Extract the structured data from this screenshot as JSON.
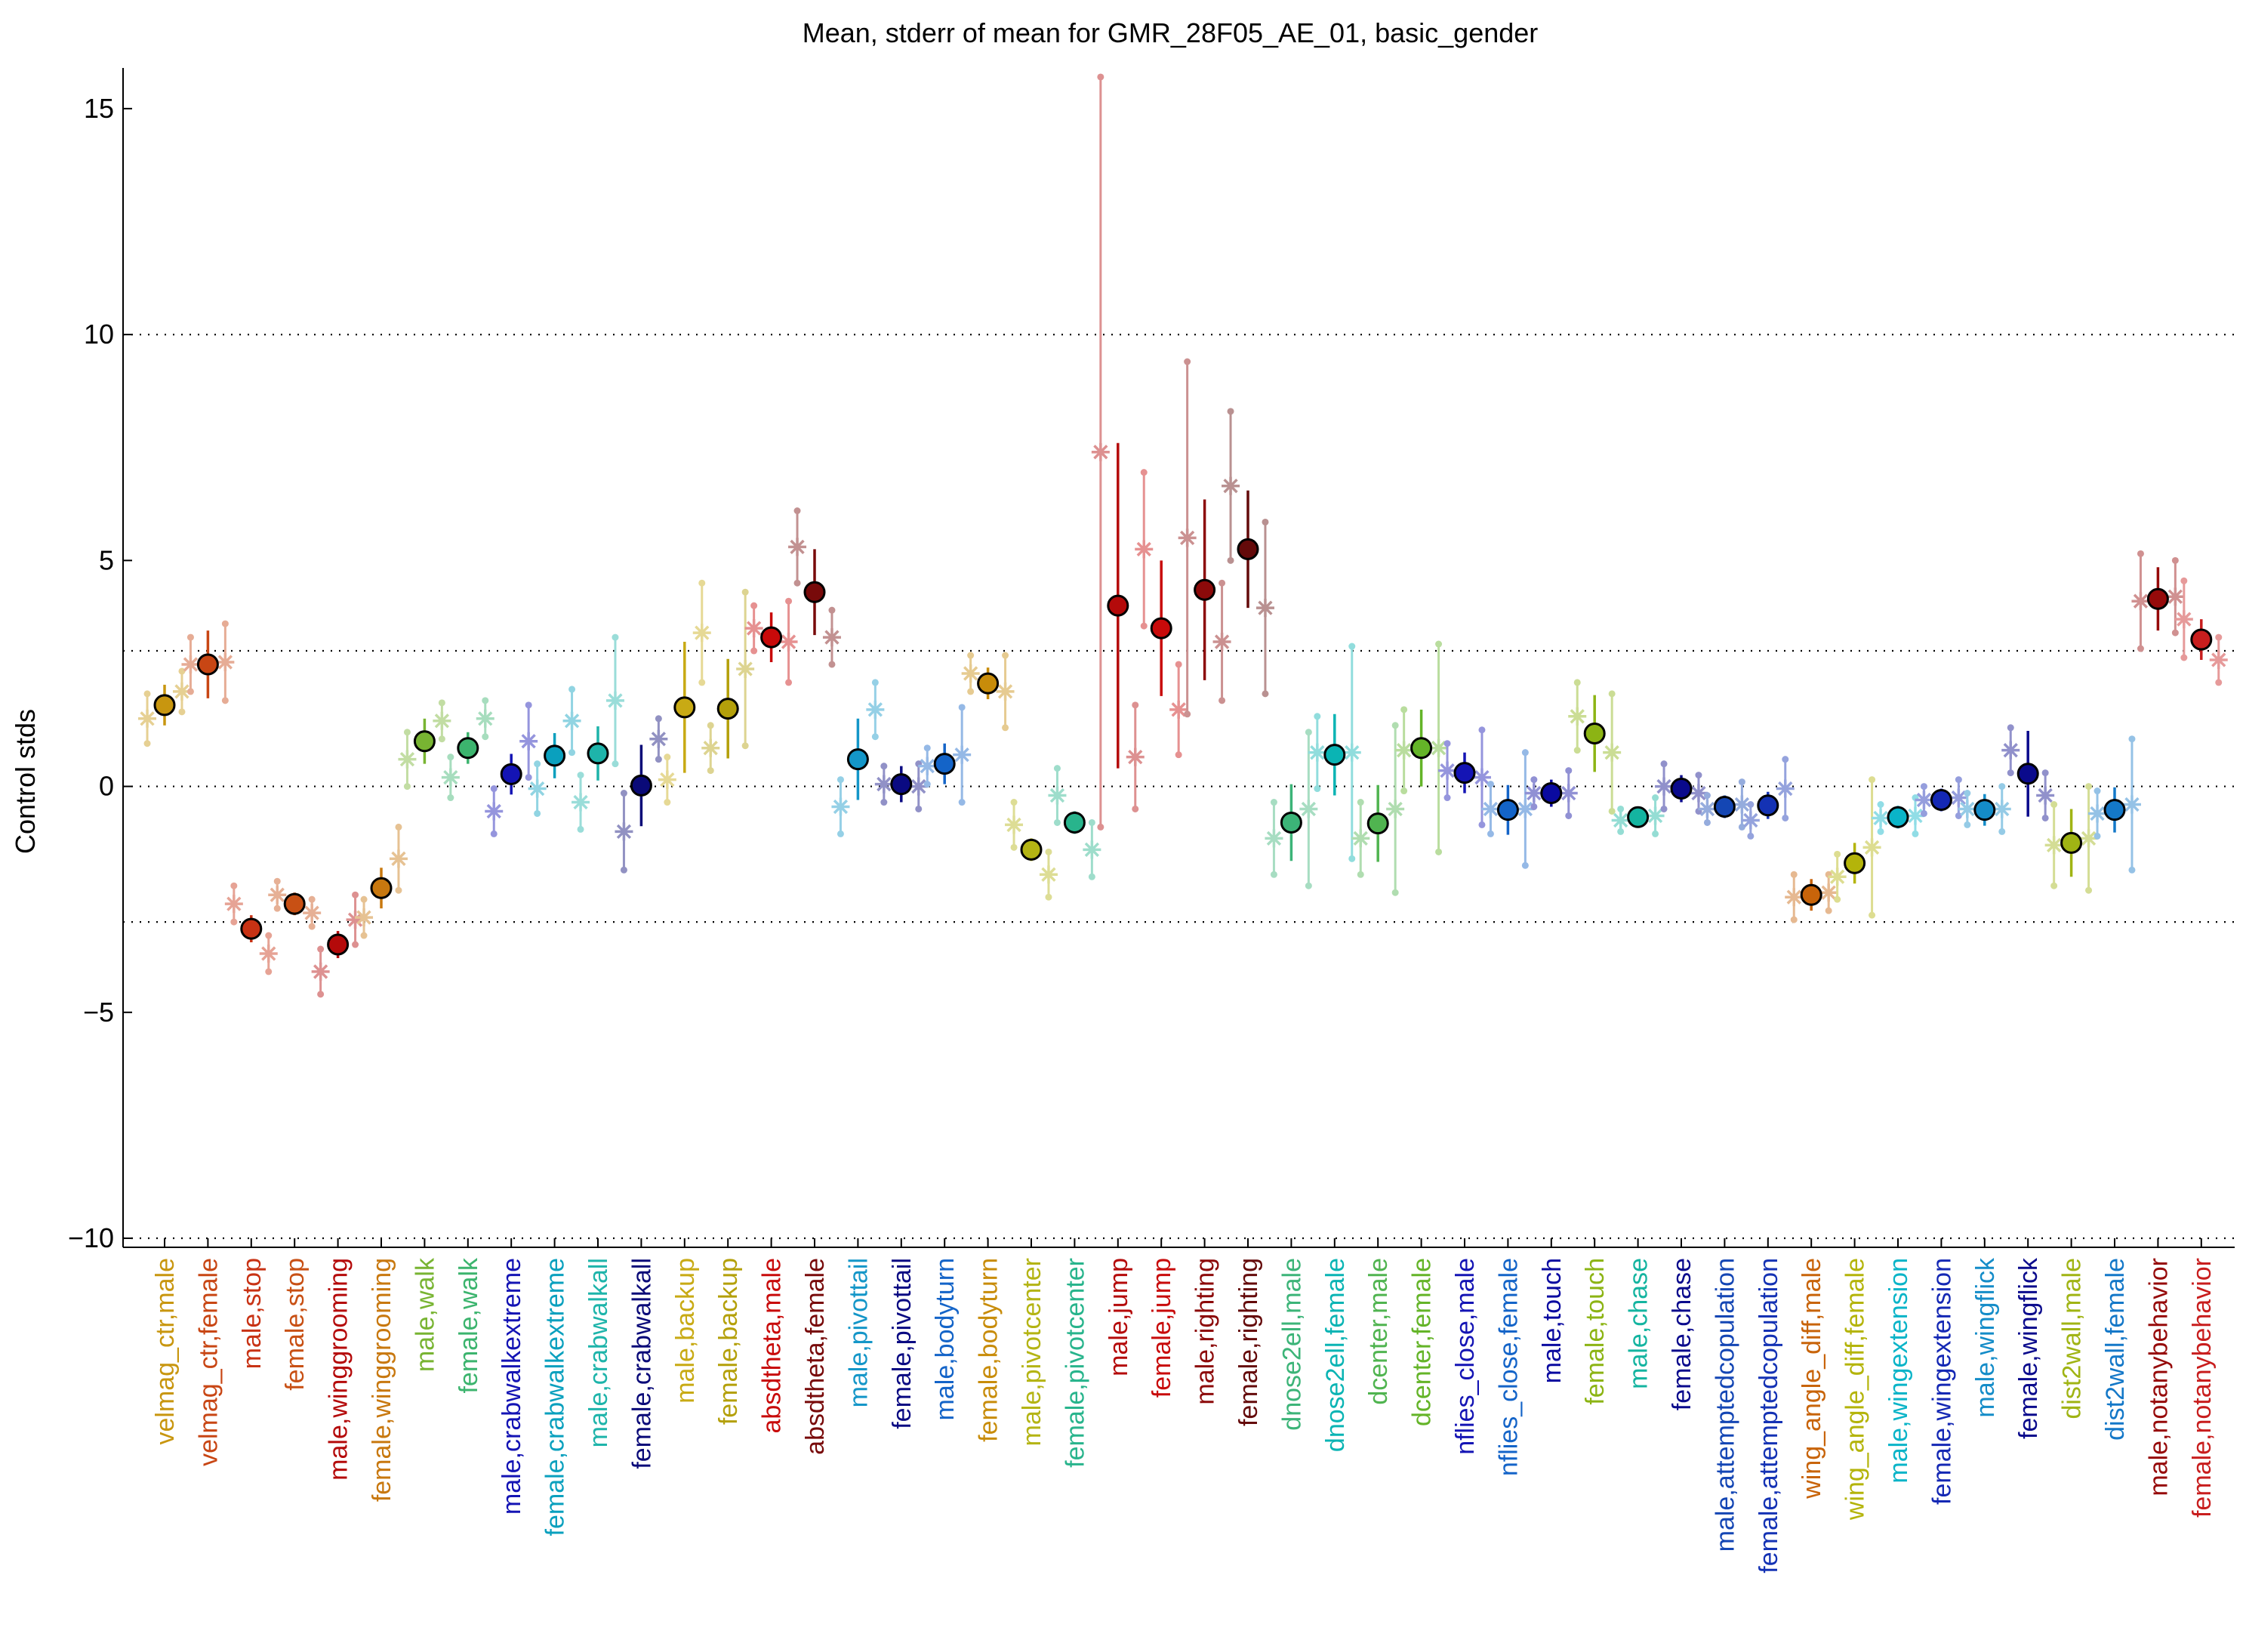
{
  "chart_data": {
    "type": "scatter",
    "title": "Mean, stderr of mean for GMR_28F05_AE_01, basic_gender",
    "xlabel": "",
    "ylabel": "Control stds",
    "ylim": [
      -10.2,
      15.9
    ],
    "yticks": [
      -10,
      -5,
      0,
      5,
      10,
      15
    ],
    "ytick_labels": [
      "−10",
      "−5",
      "0",
      "5",
      "10",
      "15"
    ],
    "reference_lines": [
      -10,
      -3,
      0,
      3,
      10
    ],
    "grid": false,
    "categories": [
      "velmag_ctr,male",
      "velmag_ctr,female",
      "male,stop",
      "female,stop",
      "male,winggrooming",
      "female,winggrooming",
      "male,walk",
      "female,walk",
      "male,crabwalkextreme",
      "female,crabwalkextreme",
      "male,crabwalkall",
      "female,crabwalkall",
      "male,backup",
      "female,backup",
      "absdtheta,male",
      "absdtheta,female",
      "male,pivottail",
      "female,pivottail",
      "male,bodyturn",
      "female,bodyturn",
      "male,pivotcenter",
      "female,pivotcenter",
      "male,jump",
      "female,jump",
      "male,righting",
      "female,righting",
      "dnose2ell,male",
      "dnose2ell,female",
      "dcenter,male",
      "dcenter,female",
      "nflies_close,male",
      "nflies_close,female",
      "male,touch",
      "female,touch",
      "male,chase",
      "female,chase",
      "male,attemptedcopulation",
      "female,attemptedcopulation",
      "wing_angle_diff,male",
      "wing_angle_diff,female",
      "male,wingextension",
      "female,wingextension",
      "male,wingflick",
      "female,wingflick",
      "dist2wall,male",
      "dist2wall,female",
      "male,notanybehavior",
      "female,notanybehavior"
    ],
    "colors": [
      "#c8960f",
      "#c84614",
      "#c83214",
      "#c85014",
      "#b40a0a",
      "#c8780f",
      "#78b432",
      "#3cb46e",
      "#1414b4",
      "#0aa0be",
      "#1eb4aa",
      "#0a0a78",
      "#c8aa14",
      "#b4a00a",
      "#c80a0a",
      "#780a0a",
      "#1496c8",
      "#0a0a82",
      "#1464c8",
      "#c88c0a",
      "#b4b414",
      "#28b48c",
      "#b40a0a",
      "#c80a0a",
      "#8c0a0a",
      "#640a0a",
      "#3cb478",
      "#0ab4b4",
      "#50b450",
      "#64b428",
      "#1414b4",
      "#1464c8",
      "#0a0aa0",
      "#8cb414",
      "#14b4a0",
      "#0a0a8c",
      "#1446b4",
      "#1432b4",
      "#c8640a",
      "#b4b40a",
      "#0ab4c8",
      "#1428b4",
      "#148cc8",
      "#0a0a8c",
      "#a0b414",
      "#1478c8",
      "#960a0a",
      "#c81e1e"
    ],
    "series": [
      {
        "values": [
          1.8,
          2.7,
          -3.15,
          -2.6,
          -3.5,
          -2.25,
          1.0,
          0.85,
          0.27,
          0.68,
          0.73,
          0.02,
          1.75,
          1.72,
          3.3,
          4.3,
          0.6,
          0.05,
          0.5,
          2.28,
          -1.4,
          -0.8,
          4.0,
          3.5,
          4.35,
          5.25,
          -0.8,
          0.7,
          -0.82,
          0.85,
          0.3,
          -0.52,
          -0.15,
          1.17,
          -0.68,
          -0.05,
          -0.45,
          -0.42,
          -2.4,
          -1.7,
          -0.68,
          -0.3,
          -0.52,
          0.28,
          -1.25,
          -0.52,
          4.15,
          3.25
        ],
        "stderr": [
          0.45,
          0.75,
          0.3,
          0.25,
          0.3,
          0.45,
          0.5,
          0.35,
          0.45,
          0.5,
          0.6,
          0.9,
          1.45,
          1.1,
          0.55,
          0.95,
          0.9,
          0.4,
          0.45,
          0.35,
          0.25,
          0.25,
          3.6,
          1.5,
          2.0,
          1.3,
          0.85,
          0.9,
          0.85,
          0.85,
          0.45,
          0.55,
          0.3,
          0.85,
          0.2,
          0.3,
          0.25,
          0.3,
          0.35,
          0.45,
          0.25,
          0.25,
          0.35,
          0.95,
          0.75,
          0.5,
          0.7,
          0.45
        ]
      },
      {
        "values": [
          1.5,
          2.7,
          -2.6,
          -2.4,
          -4.1,
          -2.9,
          0.6,
          0.2,
          -0.55,
          -0.05,
          -0.35,
          -1.0,
          0.15,
          0.85,
          3.5,
          5.3,
          -0.45,
          0.05,
          0.45,
          2.5,
          -0.85,
          -0.2,
          7.4,
          5.25,
          5.5,
          6.65,
          -1.15,
          0.75,
          -1.15,
          0.8,
          0.35,
          -0.5,
          -0.15,
          1.55,
          -0.75,
          0.0,
          -0.5,
          -0.75,
          -2.45,
          -2.0,
          -0.7,
          -0.3,
          -0.5,
          0.8,
          -1.3,
          -0.6,
          4.1,
          3.7
        ],
        "stderr": [
          0.55,
          0.6,
          0.4,
          0.3,
          0.5,
          0.4,
          0.6,
          0.45,
          0.5,
          0.55,
          0.6,
          0.85,
          0.5,
          0.5,
          0.5,
          0.8,
          0.6,
          0.4,
          0.4,
          0.4,
          0.5,
          0.6,
          8.3,
          1.7,
          3.9,
          1.65,
          0.8,
          0.8,
          0.8,
          0.9,
          0.6,
          0.55,
          0.3,
          0.75,
          0.25,
          0.5,
          0.3,
          0.35,
          0.5,
          0.5,
          0.3,
          0.3,
          0.35,
          0.5,
          0.9,
          0.5,
          1.05,
          0.85
        ]
      },
      {
        "values": [
          2.1,
          2.75,
          -3.7,
          -2.8,
          -2.95,
          -1.6,
          1.45,
          1.5,
          1.0,
          1.45,
          1.9,
          1.05,
          3.4,
          2.6,
          3.2,
          3.3,
          1.7,
          0.0,
          0.7,
          2.1,
          -1.95,
          -1.4,
          0.65,
          1.7,
          3.2,
          3.95,
          -0.5,
          0.75,
          -0.5,
          0.85,
          0.2,
          -0.5,
          -0.15,
          0.75,
          -0.65,
          -0.15,
          -0.4,
          -0.05,
          -2.35,
          -1.35,
          -0.65,
          -0.25,
          -0.5,
          -0.2,
          -1.15,
          -0.4,
          4.2,
          2.8
        ],
        "stderr": [
          0.45,
          0.85,
          0.4,
          0.3,
          0.55,
          0.7,
          0.4,
          0.4,
          0.8,
          0.7,
          1.4,
          0.45,
          1.1,
          1.7,
          0.9,
          0.6,
          0.6,
          0.5,
          1.05,
          0.8,
          0.5,
          0.6,
          1.15,
          1.0,
          1.3,
          1.9,
          1.7,
          2.35,
          1.85,
          2.3,
          1.05,
          1.25,
          0.5,
          1.3,
          0.4,
          0.4,
          0.5,
          0.65,
          0.4,
          1.5,
          0.4,
          0.4,
          0.5,
          0.5,
          1.15,
          1.45,
          0.8,
          0.5
        ]
      }
    ]
  }
}
